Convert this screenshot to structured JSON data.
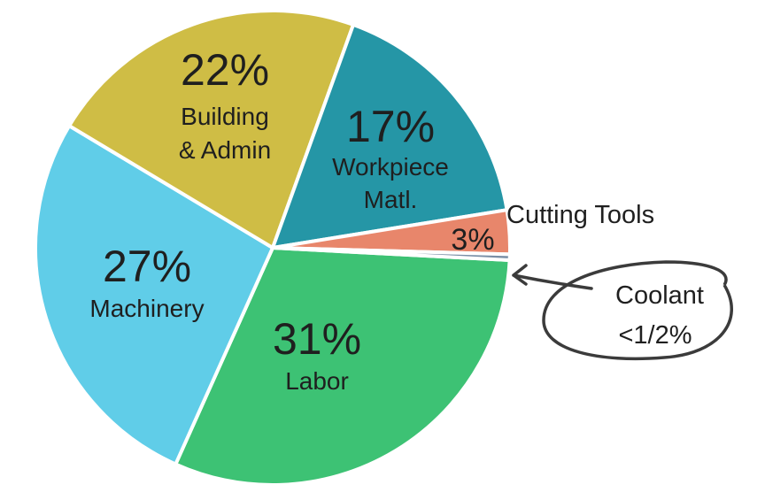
{
  "chart_data": {
    "type": "pie",
    "title": "",
    "slices": [
      {
        "label": "Labor",
        "label_lines": [
          "Labor"
        ],
        "percent_text": "31%",
        "value": 31.0,
        "color": "#3dc274"
      },
      {
        "label": "Machinery",
        "label_lines": [
          "Machinery"
        ],
        "percent_text": "27%",
        "value": 27.0,
        "color": "#60cde8"
      },
      {
        "label": "Building & Admin",
        "label_lines": [
          "Building",
          "& Admin"
        ],
        "percent_text": "22%",
        "value": 22.0,
        "color": "#cfbd45"
      },
      {
        "label": "Workpiece Matl.",
        "label_lines": [
          "Workpiece",
          "Matl."
        ],
        "percent_text": "17%",
        "value": 17.0,
        "color": "#2596a6"
      },
      {
        "label": "Cutting Tools",
        "label_lines": [],
        "percent_text": "3%",
        "value": 3.0,
        "color": "#e8866b"
      },
      {
        "label": "Coolant",
        "label_lines": [],
        "percent_text": "",
        "value": 0.4,
        "color": "#7a8fa6"
      }
    ],
    "annotations": {
      "cutting_tools": "Cutting Tools",
      "coolant_name": "Coolant",
      "coolant_value": "<1/2%"
    }
  }
}
